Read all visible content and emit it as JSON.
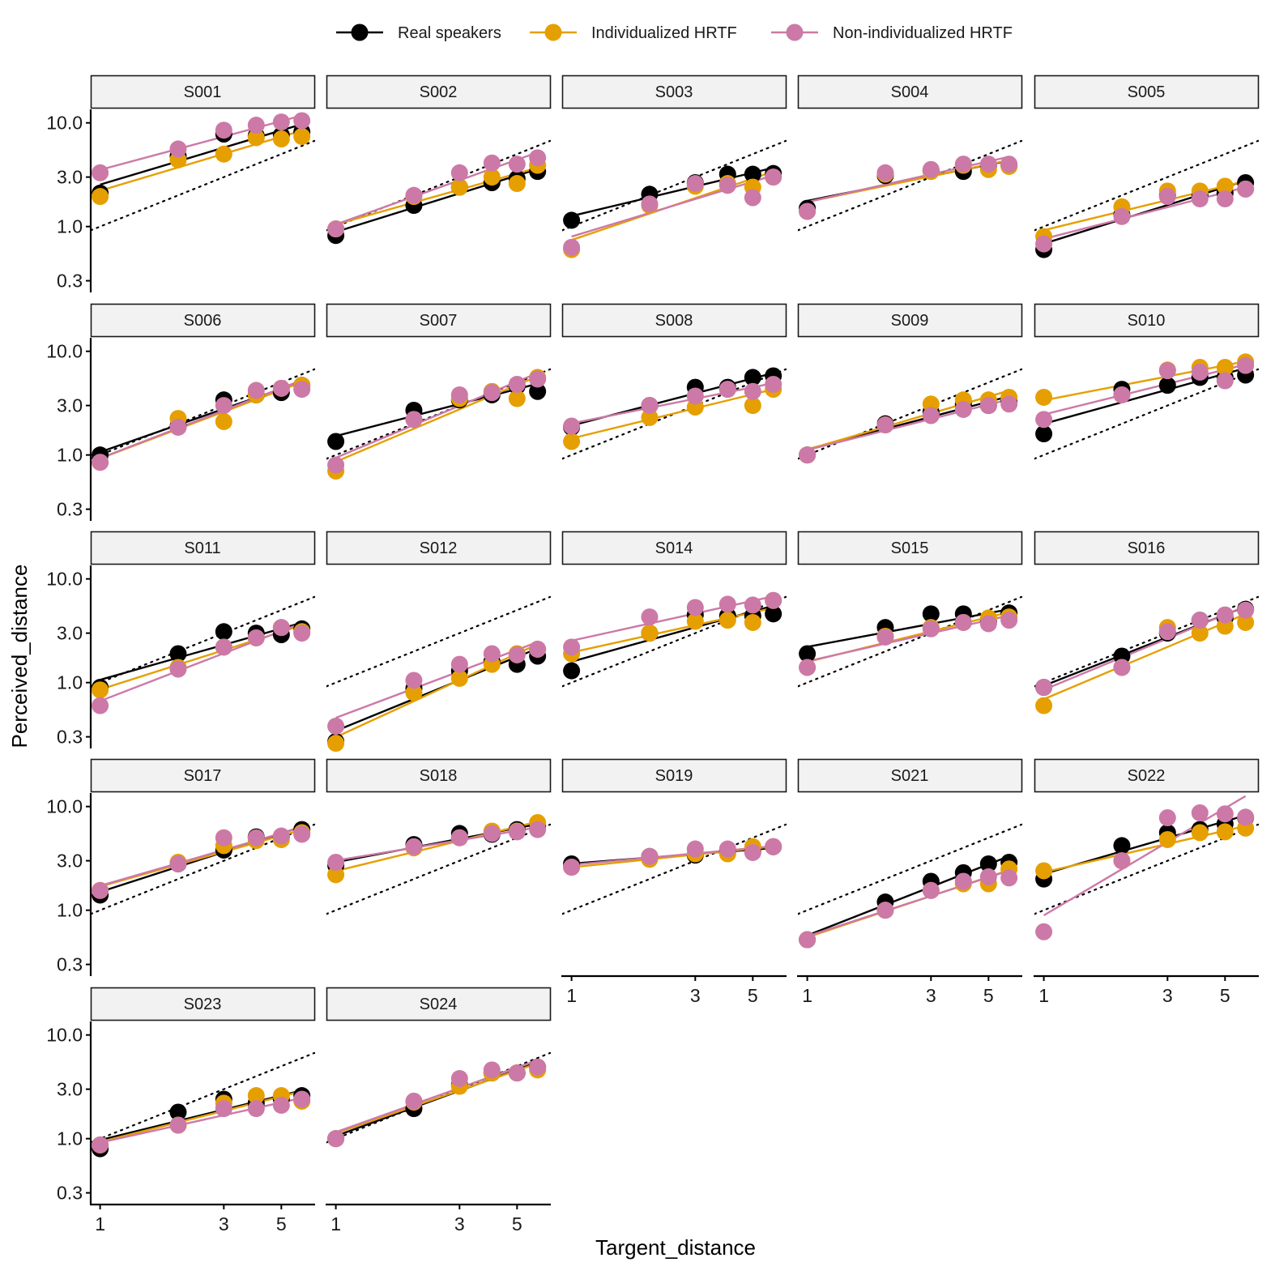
{
  "chart_data": {
    "type": "scatter",
    "facet_layout": "wrap",
    "scale": {
      "x": "log",
      "y": "log"
    },
    "xlabel": "Targent_distance",
    "ylabel": "Perceived_distance",
    "x_ticks": [
      1,
      3,
      5
    ],
    "y_ticks": [
      0.3,
      1,
      3,
      10
    ],
    "y_tick_labels": [
      "0.3",
      "1.0",
      "3.0",
      "10.0"
    ],
    "xlim": [
      0.92,
      6.7
    ],
    "ylim": [
      0.24,
      13.5
    ],
    "x": [
      1,
      2,
      3,
      4,
      5,
      6
    ],
    "reference_line": "identity (y = x), dotted",
    "legend": {
      "position": "top"
    },
    "series_defs": [
      {
        "key": "real",
        "name": "Real speakers",
        "color": "#000000"
      },
      {
        "key": "ind",
        "name": "Individualized HRTF",
        "color": "#E69F00"
      },
      {
        "key": "non",
        "name": "Non-individualized HRTF",
        "color": "#CC79A7"
      }
    ],
    "panels": [
      {
        "label": "S001",
        "series": {
          "real": [
            2.1,
            4.8,
            7.8,
            7.5,
            7.6,
            8.2
          ],
          "ind": [
            1.95,
            4.4,
            5.0,
            7.2,
            7.0,
            7.4
          ],
          "non": [
            3.3,
            5.6,
            8.5,
            9.5,
            10.2,
            10.5
          ]
        }
      },
      {
        "label": "S002",
        "series": {
          "real": [
            0.82,
            1.6,
            2.4,
            2.65,
            2.9,
            3.4
          ],
          "ind": [
            0.95,
            1.95,
            2.4,
            3.0,
            2.6,
            3.9
          ],
          "non": [
            0.95,
            2.0,
            3.3,
            4.1,
            4.0,
            4.6
          ]
        }
      },
      {
        "label": "S003",
        "series": {
          "real": [
            1.15,
            2.05,
            2.65,
            3.2,
            3.2,
            3.25
          ],
          "ind": [
            0.6,
            1.6,
            2.45,
            2.6,
            2.4,
            3.0
          ],
          "non": [
            0.63,
            1.65,
            2.6,
            2.5,
            1.9,
            3.0
          ]
        }
      },
      {
        "label": "S004",
        "series": {
          "real": [
            1.5,
            3.1,
            3.45,
            3.4,
            3.85,
            3.9
          ],
          "ind": [
            1.4,
            3.2,
            3.4,
            3.9,
            3.55,
            3.8
          ],
          "non": [
            1.4,
            3.3,
            3.55,
            4.0,
            4.0,
            4.0
          ]
        }
      },
      {
        "label": "S005",
        "series": {
          "real": [
            0.6,
            1.3,
            2.0,
            2.0,
            2.1,
            2.65
          ],
          "ind": [
            0.8,
            1.55,
            2.2,
            2.2,
            2.45,
            2.3
          ],
          "non": [
            0.68,
            1.25,
            1.95,
            1.85,
            1.85,
            2.3
          ]
        }
      },
      {
        "label": "S006",
        "series": {
          "real": [
            1.0,
            1.9,
            3.4,
            3.8,
            4.0,
            4.7
          ],
          "ind": [
            0.85,
            2.25,
            2.1,
            3.8,
            4.4,
            4.7
          ],
          "non": [
            0.85,
            1.85,
            3.0,
            4.2,
            4.4,
            4.3
          ]
        }
      },
      {
        "label": "S007",
        "series": {
          "real": [
            1.35,
            2.7,
            3.4,
            3.8,
            4.6,
            4.1
          ],
          "ind": [
            0.7,
            2.2,
            3.5,
            4.1,
            3.5,
            5.6
          ],
          "non": [
            0.8,
            2.2,
            3.8,
            4.0,
            4.8,
            5.4
          ]
        }
      },
      {
        "label": "S008",
        "series": {
          "real": [
            1.85,
            3.0,
            4.5,
            4.5,
            5.6,
            5.8
          ],
          "ind": [
            1.35,
            2.3,
            2.9,
            4.3,
            3.0,
            4.3
          ],
          "non": [
            1.9,
            3.0,
            3.7,
            4.3,
            4.1,
            4.8
          ]
        }
      },
      {
        "label": "S009",
        "series": {
          "real": [
            1.0,
            2.0,
            2.6,
            3.1,
            3.0,
            3.3
          ],
          "ind": [
            1.0,
            1.95,
            3.1,
            3.4,
            3.4,
            3.6
          ],
          "non": [
            1.0,
            1.95,
            2.4,
            2.75,
            3.0,
            3.1
          ]
        }
      },
      {
        "label": "S010",
        "series": {
          "real": [
            1.6,
            4.3,
            4.7,
            5.6,
            5.6,
            5.9
          ],
          "ind": [
            3.6,
            3.8,
            6.6,
            7.0,
            7.0,
            7.9
          ],
          "non": [
            2.2,
            3.8,
            6.5,
            6.3,
            5.2,
            7.3
          ]
        }
      },
      {
        "label": "S011",
        "series": {
          "real": [
            0.9,
            1.9,
            3.1,
            3.0,
            2.9,
            3.3
          ],
          "ind": [
            0.85,
            1.4,
            2.2,
            2.7,
            3.4,
            3.1
          ],
          "non": [
            0.6,
            1.35,
            2.2,
            2.7,
            3.4,
            3.0
          ]
        }
      },
      {
        "label": "S012",
        "series": {
          "real": [
            0.27,
            0.88,
            1.3,
            1.6,
            1.5,
            1.8
          ],
          "ind": [
            0.26,
            0.8,
            1.1,
            1.5,
            1.9,
            2.1
          ],
          "non": [
            0.38,
            1.05,
            1.5,
            1.9,
            1.85,
            2.1
          ]
        }
      },
      {
        "label": "S014",
        "series": {
          "real": [
            1.3,
            3.0,
            4.5,
            4.4,
            4.4,
            4.6
          ],
          "ind": [
            1.9,
            3.0,
            3.9,
            4.0,
            3.8,
            6.2
          ],
          "non": [
            2.2,
            4.3,
            5.3,
            5.7,
            5.6,
            6.2
          ]
        }
      },
      {
        "label": "S015",
        "series": {
          "real": [
            1.9,
            3.4,
            4.6,
            4.6,
            3.9,
            4.7
          ],
          "ind": [
            1.4,
            2.8,
            3.4,
            3.8,
            4.2,
            4.3
          ],
          "non": [
            1.4,
            2.75,
            3.3,
            3.8,
            3.7,
            4.0
          ]
        }
      },
      {
        "label": "S016",
        "series": {
          "real": [
            0.9,
            1.8,
            3.0,
            4.0,
            4.2,
            5.1
          ],
          "ind": [
            0.6,
            1.4,
            3.4,
            3.0,
            3.5,
            3.8
          ],
          "non": [
            0.9,
            1.4,
            3.1,
            4.0,
            4.5,
            5.0
          ]
        }
      },
      {
        "label": "S017",
        "series": {
          "real": [
            1.4,
            2.8,
            3.8,
            5.1,
            5.1,
            6.0
          ],
          "ind": [
            1.55,
            2.9,
            4.2,
            4.7,
            4.8,
            5.6
          ],
          "non": [
            1.55,
            2.8,
            5.0,
            5.0,
            5.2,
            5.4
          ]
        }
      },
      {
        "label": "S018",
        "series": {
          "real": [
            2.7,
            4.3,
            5.5,
            5.4,
            6.0,
            6.5
          ],
          "ind": [
            2.2,
            4.0,
            5.0,
            5.8,
            5.8,
            7.0
          ],
          "non": [
            2.9,
            4.1,
            5.0,
            5.5,
            5.7,
            6.0
          ]
        }
      },
      {
        "label": "S019",
        "series": {
          "real": [
            2.8,
            3.3,
            3.4,
            3.7,
            3.7,
            4.1
          ],
          "ind": [
            2.6,
            3.1,
            3.5,
            3.5,
            4.1,
            4.1
          ],
          "non": [
            2.6,
            3.3,
            3.9,
            3.9,
            3.6,
            4.1
          ]
        }
      },
      {
        "label": "S021",
        "series": {
          "real": [
            0.52,
            1.2,
            1.9,
            2.3,
            2.8,
            2.9
          ],
          "ind": [
            0.52,
            1.0,
            1.55,
            1.8,
            1.8,
            2.5
          ],
          "non": [
            0.52,
            1.0,
            1.55,
            1.9,
            2.1,
            2.05
          ]
        }
      },
      {
        "label": "S022",
        "series": {
          "real": [
            2.0,
            4.2,
            5.6,
            6.0,
            6.8,
            7.8
          ],
          "ind": [
            2.4,
            3.0,
            4.8,
            5.6,
            5.7,
            6.2
          ],
          "non": [
            0.62,
            3.0,
            7.8,
            8.7,
            8.5,
            7.9
          ]
        }
      },
      {
        "label": "S023",
        "series": {
          "real": [
            0.8,
            1.8,
            2.4,
            2.2,
            2.4,
            2.6
          ],
          "ind": [
            0.87,
            1.35,
            2.2,
            2.6,
            2.6,
            2.3
          ],
          "non": [
            0.87,
            1.35,
            1.95,
            1.95,
            2.1,
            2.4
          ]
        }
      },
      {
        "label": "S024",
        "series": {
          "real": [
            1.0,
            1.95,
            3.3,
            4.3,
            4.3,
            4.9
          ],
          "ind": [
            1.0,
            2.25,
            3.2,
            4.3,
            4.3,
            4.6
          ],
          "non": [
            1.0,
            2.3,
            3.8,
            4.6,
            4.3,
            4.9
          ]
        }
      }
    ]
  }
}
